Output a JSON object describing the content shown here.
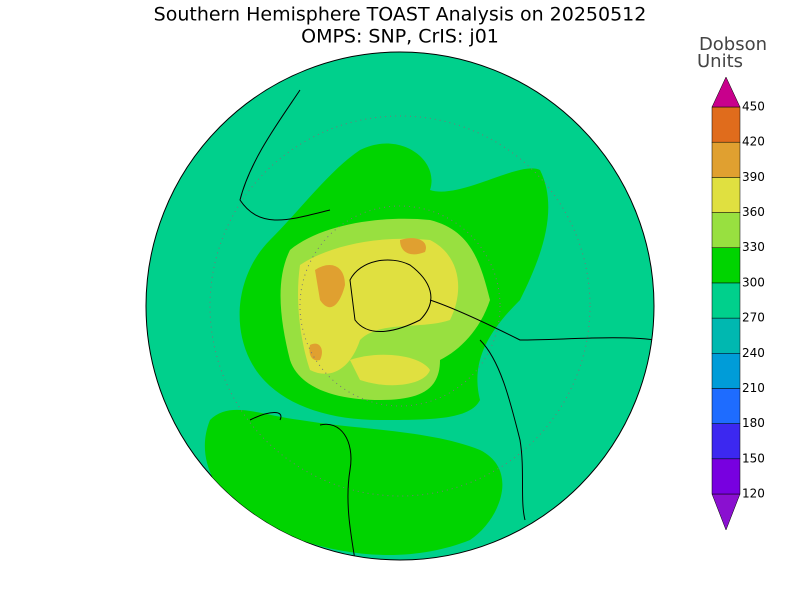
{
  "title": "Southern Hemisphere TOAST Analysis on 20250512",
  "subtitle": "OMPS: SNP, CrIS: j01",
  "colorbar": {
    "title": [
      "Dobson",
      "Units"
    ],
    "levels": [
      120,
      150,
      180,
      210,
      240,
      270,
      300,
      330,
      360,
      390,
      420,
      450
    ],
    "colors": [
      "#8a10d0",
      "#7800e0",
      "#3c28f0",
      "#1e6cff",
      "#009cd8",
      "#00b8b0",
      "#00d08c",
      "#00d400",
      "#98e040",
      "#e0e040",
      "#e0a030",
      "#e06c1c",
      "#e00000",
      "#c8008c"
    ]
  }
}
